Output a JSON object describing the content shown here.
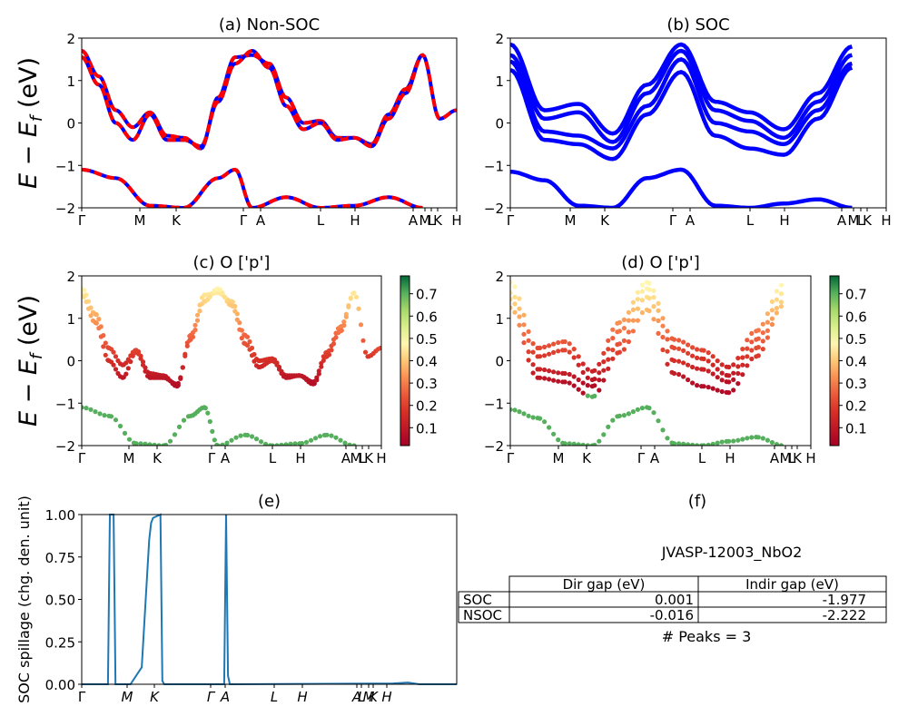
{
  "figure_label_y_top": "E − E_f (eV)",
  "chart_data": [
    {
      "id": "a",
      "type": "line",
      "title": "(a) Non-SOC",
      "ylabel": "E − E_f (eV)",
      "ylim": [
        -2,
        2
      ],
      "y_ticks": [
        "2",
        "1",
        "0",
        "−1",
        "−2"
      ],
      "x_ticks": [
        "Γ",
        "M",
        "K",
        "Γ",
        "A",
        "L",
        "H",
        "A",
        "M",
        "L",
        "K",
        "H"
      ],
      "series": [
        {
          "values_x": [
            0,
            0.5,
            1,
            1.5,
            2,
            2.5,
            3,
            3.5,
            4,
            4.5,
            5,
            5.5,
            6,
            6.5,
            7,
            7.5,
            8,
            8.5,
            9,
            9.5,
            10,
            10.5,
            11
          ],
          "values_y": [
            1.7,
            1.1,
            0.3,
            -0.1,
            0.25,
            -0.3,
            -0.35,
            -0.6,
            0.6,
            1.55,
            1.6,
            1.4,
            0.6,
            0.0,
            0.05,
            -0.35,
            -0.35,
            -0.5,
            0.2,
            0.8,
            1.6,
            0.1,
            0.3
          ],
          "color": "#ff0000"
        },
        {
          "values_x": [
            0,
            0.5,
            1,
            1.5,
            2,
            2.5,
            3,
            3.5,
            4,
            4.5,
            5,
            5.5,
            6,
            6.5,
            7,
            7.5,
            8,
            8.5,
            9,
            9.5,
            10
          ],
          "values_y": [
            1.55,
            0.9,
            0.0,
            -0.4,
            0.2,
            -0.4,
            -0.4,
            -0.55,
            0.5,
            1.4,
            1.7,
            1.3,
            0.4,
            -0.15,
            0.0,
            -0.4,
            -0.35,
            -0.55,
            0.1,
            0.7,
            1.6
          ],
          "color": "#ff0000"
        },
        {
          "values_x": [
            0,
            1,
            2,
            3,
            4,
            4.5,
            5,
            6,
            7,
            8,
            9,
            10
          ],
          "values_y": [
            -1.1,
            -1.3,
            -1.95,
            -2.0,
            -1.3,
            -1.1,
            -2.0,
            -1.75,
            -2.0,
            -1.95,
            -1.75,
            -2.0
          ],
          "color": "#ff0000"
        }
      ]
    },
    {
      "id": "b",
      "type": "line",
      "title": "(b) SOC",
      "ylim": [
        -2,
        2
      ],
      "y_ticks": [
        "2",
        "1",
        "0",
        "−1",
        "−2"
      ],
      "x_ticks": [
        "Γ",
        "M",
        "K",
        "Γ",
        "A",
        "L",
        "H",
        "A",
        "M",
        "L",
        "K",
        "H"
      ],
      "series": [
        {
          "values_x": [
            0,
            1,
            2,
            3,
            4,
            5,
            6,
            7,
            8,
            9,
            10
          ],
          "values_y": [
            1.85,
            0.3,
            0.45,
            -0.25,
            0.9,
            1.85,
            0.5,
            0.25,
            -0.15,
            0.7,
            1.8
          ],
          "color": "#0000ff"
        },
        {
          "values_x": [
            0,
            1,
            2,
            3,
            4,
            5,
            6,
            7,
            8,
            9,
            10
          ],
          "values_y": [
            1.6,
            0.1,
            0.25,
            -0.45,
            0.7,
            1.7,
            0.3,
            0.05,
            -0.35,
            0.5,
            1.6
          ],
          "color": "#0000ff"
        },
        {
          "values_x": [
            0,
            1,
            2,
            3,
            4,
            5,
            6,
            7,
            8,
            9,
            10
          ],
          "values_y": [
            1.45,
            -0.2,
            -0.3,
            -0.6,
            0.4,
            1.5,
            0.0,
            -0.2,
            -0.5,
            0.3,
            1.4
          ],
          "color": "#0000ff"
        },
        {
          "values_x": [
            0,
            1,
            2,
            3,
            4,
            5,
            6,
            7,
            8,
            9,
            10
          ],
          "values_y": [
            1.25,
            -0.4,
            -0.5,
            -0.85,
            0.2,
            1.2,
            -0.3,
            -0.6,
            -0.75,
            0.1,
            1.3
          ],
          "color": "#0000ff"
        },
        {
          "values_x": [
            0,
            1,
            2,
            3,
            4,
            5,
            6,
            7,
            8,
            9,
            10
          ],
          "values_y": [
            -1.15,
            -1.35,
            -1.95,
            -2.0,
            -1.3,
            -1.1,
            -1.95,
            -2.0,
            -1.9,
            -1.8,
            -2.0
          ],
          "color": "#0000ff"
        }
      ]
    },
    {
      "id": "c",
      "type": "scatter",
      "title": "(c)  O ['p']",
      "ylabel": "E − E_f (eV)",
      "ylim": [
        -2,
        2
      ],
      "y_ticks": [
        "2",
        "1",
        "0",
        "−1",
        "−2"
      ],
      "x_ticks": [
        "Γ",
        "M",
        "K",
        "Γ",
        "A",
        "L",
        "H",
        "A",
        "M",
        "L",
        "K",
        "H"
      ],
      "colorbar_ticks": [
        "0.7",
        "0.6",
        "0.5",
        "0.4",
        "0.3",
        "0.2",
        "0.1"
      ],
      "colorbar_range": [
        0.02,
        0.78
      ]
    },
    {
      "id": "d",
      "type": "scatter",
      "title": "(d) O ['p']",
      "ylim": [
        -2,
        2
      ],
      "y_ticks": [
        "2",
        "1",
        "0",
        "−1",
        "−2"
      ],
      "x_ticks": [
        "Γ",
        "M",
        "K",
        "Γ",
        "A",
        "L",
        "H",
        "A",
        "M",
        "L",
        "K",
        "H"
      ],
      "colorbar_ticks": [
        "0.7",
        "0.6",
        "0.5",
        "0.4",
        "0.3",
        "0.2",
        "0.1"
      ],
      "colorbar_range": [
        0.02,
        0.78
      ]
    },
    {
      "id": "e",
      "type": "line",
      "title": "(e)",
      "ylabel": "SOC spillage (chg. den. unit)",
      "ylim": [
        0,
        1
      ],
      "y_ticks": [
        "1.00",
        "0.75",
        "0.50",
        "0.25",
        "0.00"
      ],
      "x_ticks": [
        "Γ",
        "M",
        "K",
        "Γ",
        "A",
        "L",
        "H",
        "A",
        "L",
        "M",
        "K",
        "H"
      ],
      "series": [
        {
          "name": "",
          "values_x": [
            0,
            0.07,
            0.075,
            0.085,
            0.09,
            0.1,
            0.13,
            0.16,
            0.18,
            0.185,
            0.19,
            0.21,
            0.215,
            0.22,
            0.38,
            0.385,
            0.39,
            0.395,
            0.4,
            0.83,
            0.87,
            0.9,
            1.0
          ],
          "values_y": [
            0,
            0,
            1.0,
            1.0,
            0,
            0,
            0,
            0.1,
            0.85,
            0.95,
            0.98,
            1.0,
            0.02,
            0,
            0,
            1.0,
            0.05,
            0,
            0,
            0.005,
            0.01,
            0,
            0
          ]
        }
      ]
    }
  ],
  "table": {
    "title": "(f)",
    "subtitle": "JVASP-12003_NbO2",
    "headers": [
      "",
      "Dir gap (eV)",
      "Indir gap (eV)"
    ],
    "rows": [
      [
        "SOC",
        "0.001",
        "-1.977"
      ],
      [
        "NSOC",
        "-0.016",
        "-2.222"
      ]
    ],
    "footer": "# Peaks = 3"
  }
}
